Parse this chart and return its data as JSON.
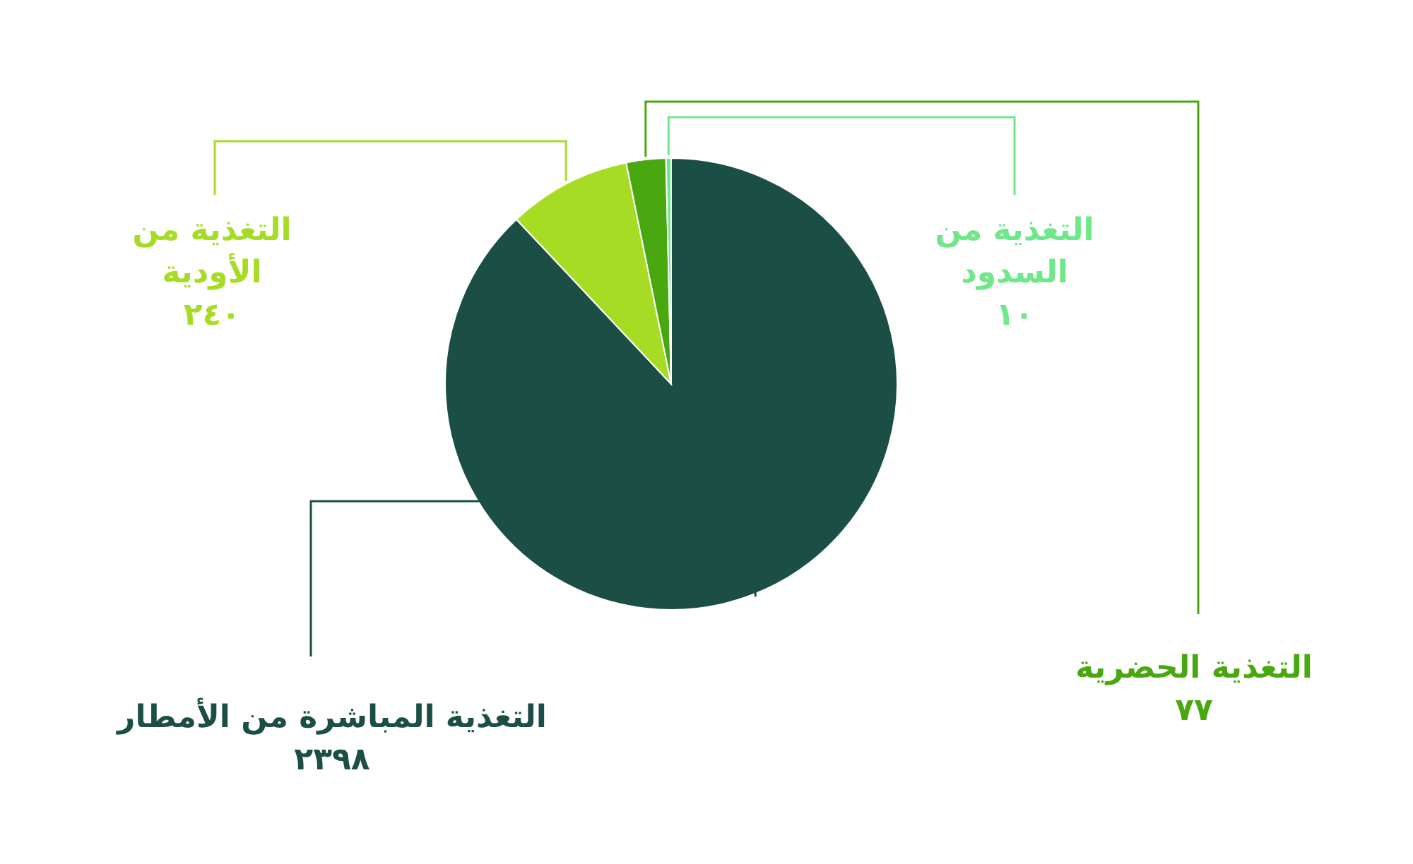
{
  "chart_data": {
    "type": "pie",
    "categories": [
      "التغذية المباشرة من الأمطار",
      "التغذية من الأودية",
      "التغذية الحضرية",
      "التغذية من السدود"
    ],
    "values": [
      2398,
      240,
      77,
      10
    ],
    "value_labels": [
      "٢٣٩٨",
      "٢٤٠",
      "٧٧",
      "١٠"
    ],
    "colors": [
      "#1b4f45",
      "#a6dd24",
      "#49a80f",
      "#6fe88a"
    ]
  }
}
